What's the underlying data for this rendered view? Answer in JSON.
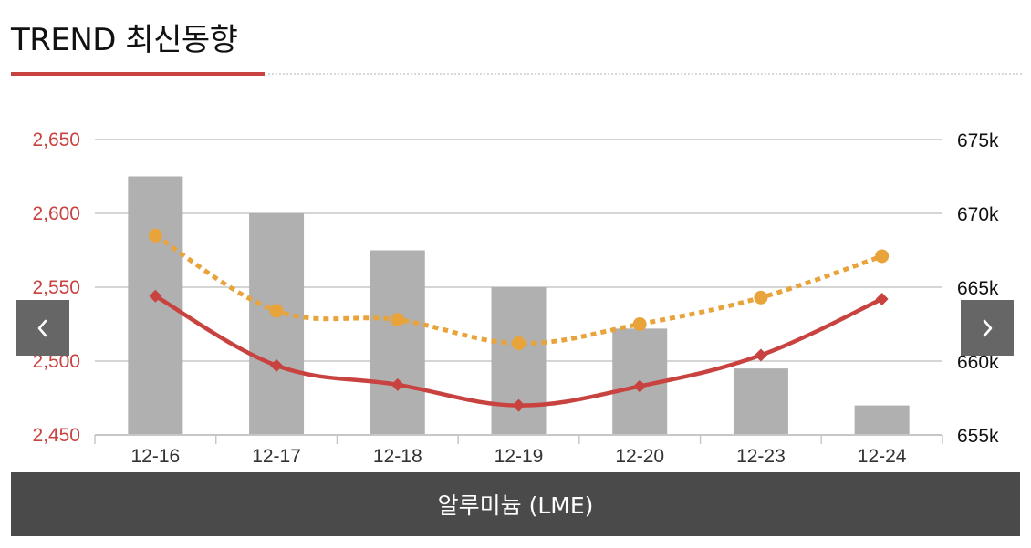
{
  "header": {
    "title": "TREND 최신동향"
  },
  "nav": {
    "prev_icon": "chevron-left-icon",
    "next_icon": "chevron-right-icon"
  },
  "caption": {
    "label": "알루미늄 (LME)"
  },
  "colors": {
    "accent": "#c8423f",
    "bars": "#b0b0b0",
    "dotted_line": "#e8a33a",
    "grid": "#c7c7c7",
    "nav_bg": "#666666",
    "caption_bg": "#4a4a4a"
  },
  "chart_data": {
    "type": "bar",
    "categories": [
      "12-16",
      "12-17",
      "12-18",
      "12-19",
      "12-20",
      "12-23",
      "12-24"
    ],
    "y_left": {
      "ticks": [
        "2,650",
        "2,600",
        "2,550",
        "2,500",
        "2,450"
      ],
      "range": [
        2450,
        2650
      ]
    },
    "y_right": {
      "ticks": [
        "675k",
        "670k",
        "665k",
        "660k",
        "655k"
      ],
      "range": [
        655000,
        675000
      ]
    },
    "grid": true,
    "legend": "none",
    "series": [
      {
        "type": "bar",
        "axis": "right",
        "color": "#b0b0b0",
        "values": [
          672500,
          670000,
          667500,
          665000,
          662200,
          659500,
          657000
        ]
      },
      {
        "type": "line",
        "style": "dotted",
        "marker": "circle",
        "axis": "left",
        "color": "#e8a33a",
        "values": [
          2585,
          2534,
          2528,
          2512,
          2525,
          2543,
          2571
        ]
      },
      {
        "type": "line",
        "style": "solid",
        "marker": "diamond",
        "axis": "left",
        "color": "#c8423f",
        "values": [
          2544,
          2497,
          2484,
          2470,
          2483,
          2504,
          2542
        ]
      }
    ]
  }
}
